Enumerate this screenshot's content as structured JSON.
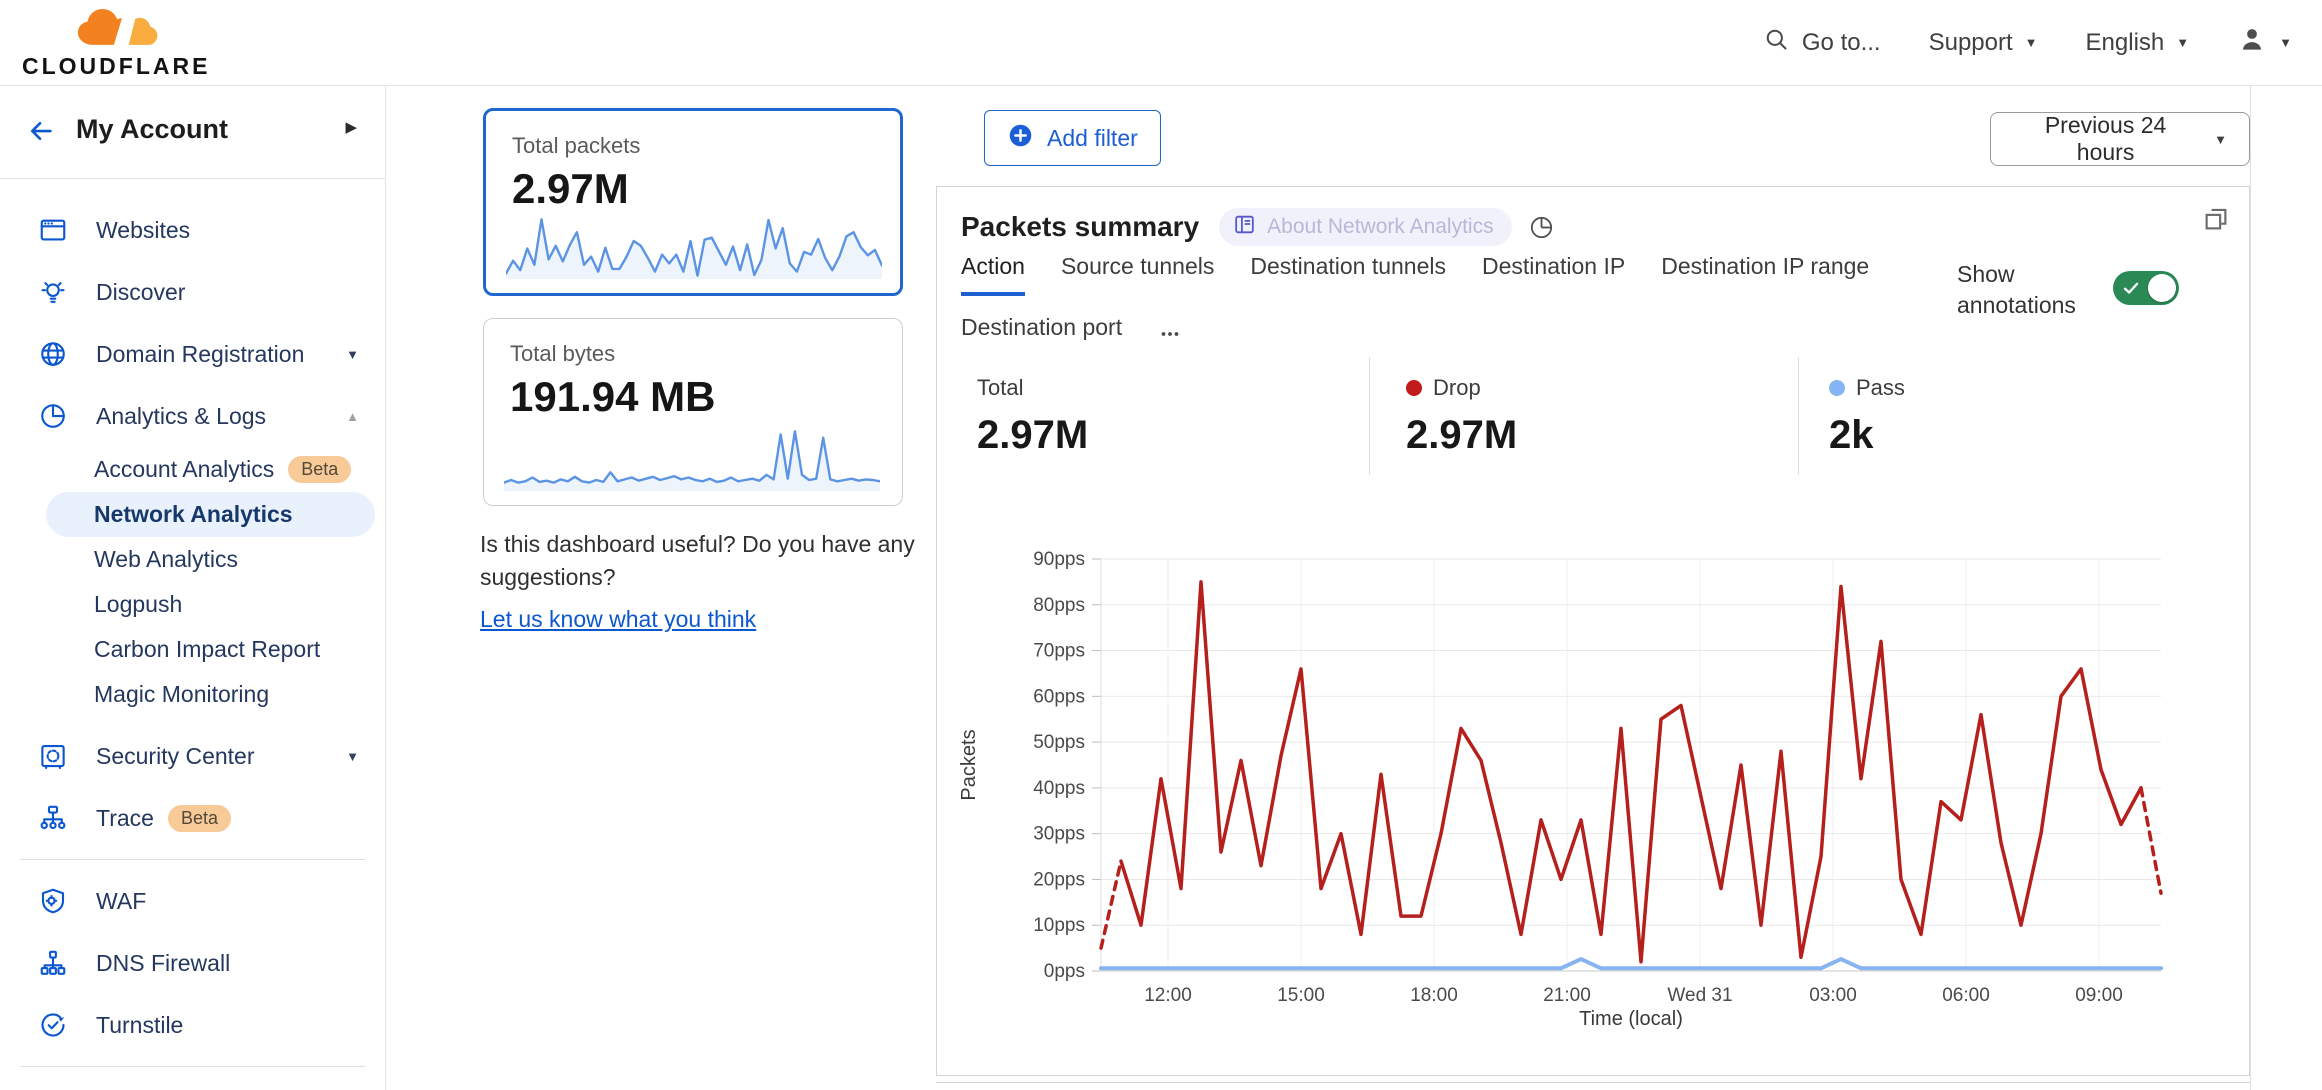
{
  "header": {
    "logo": "CLOUDFLARE",
    "goto": "Go to...",
    "support": "Support",
    "language": "English"
  },
  "sidebar": {
    "account_label": "My Account",
    "items": [
      {
        "label": "Websites",
        "icon": "browser-icon"
      },
      {
        "label": "Discover",
        "icon": "lightbulb-icon"
      },
      {
        "label": "Domain Registration",
        "icon": "globe-icon",
        "caret": "down"
      },
      {
        "label": "Analytics & Logs",
        "icon": "pie-icon",
        "caret": "up",
        "children": [
          {
            "label": "Account Analytics",
            "badge": "Beta"
          },
          {
            "label": "Network Analytics",
            "selected": true
          },
          {
            "label": "Web Analytics"
          },
          {
            "label": "Logpush"
          },
          {
            "label": "Carbon Impact Report"
          },
          {
            "label": "Magic Monitoring"
          }
        ]
      },
      {
        "label": "Security Center",
        "icon": "safe-icon",
        "caret": "down",
        "gap": true
      },
      {
        "label": "Trace",
        "icon": "tree-icon",
        "badge": "Beta"
      },
      {
        "divider": true
      },
      {
        "label": "WAF",
        "icon": "shield-gear-icon"
      },
      {
        "label": "DNS Firewall",
        "icon": "hierarchy-icon"
      },
      {
        "label": "Turnstile",
        "icon": "clock-check-icon"
      },
      {
        "divider": true
      },
      {
        "label": "",
        "icon": "burst-icon",
        "partial": true
      }
    ]
  },
  "overview": {
    "cards": [
      {
        "label": "Total packets",
        "value": "2.97M",
        "selected": true
      },
      {
        "label": "Total bytes",
        "value": "191.94 MB",
        "selected": false
      }
    ],
    "feedback_text": "Is this dashboard useful? Do you have any suggestions?",
    "feedback_link": "Let us know what you think"
  },
  "toolbar": {
    "add_filter": "Add filter",
    "time_range": "Previous 24 hours"
  },
  "panel": {
    "title": "Packets summary",
    "about_badge": "About Network Analytics",
    "tabs": [
      {
        "label": "Action",
        "active": true
      },
      {
        "label": "Source tunnels",
        "active": false
      },
      {
        "label": "Destination tunnels",
        "active": false
      },
      {
        "label": "Destination IP",
        "active": false
      },
      {
        "label": "Destination IP range",
        "active": false
      },
      {
        "label": "Destination port",
        "active": false
      }
    ],
    "show_annotations": "Show annotations",
    "annotations_on": true,
    "stats": [
      {
        "label": "Total",
        "value": "2.97M",
        "dot": ""
      },
      {
        "label": "Drop",
        "value": "2.97M",
        "dot": "#c11b1b"
      },
      {
        "label": "Pass",
        "value": "2k",
        "dot": "#85b4f4"
      }
    ]
  },
  "colors": {
    "accent_blue": "#0b57d0",
    "drop_red": "#b5201c",
    "pass_blue": "#87b3f1",
    "toggle_green": "#2b8956",
    "selected_card_border": "#2166cf",
    "sparkline_blue": "#5b94e4"
  },
  "chart_data": [
    {
      "id": "packets-summary",
      "type": "line",
      "title": "Packets summary",
      "xlabel": "Time (local)",
      "ylabel": "Packets",
      "ylim": [
        0,
        90
      ],
      "yticks": [
        "0pps",
        "10pps",
        "20pps",
        "30pps",
        "40pps",
        "50pps",
        "60pps",
        "70pps",
        "80pps",
        "90pps"
      ],
      "xticks": [
        "12:00",
        "15:00",
        "18:00",
        "21:00",
        "Wed 31",
        "03:00",
        "06:00",
        "09:00"
      ],
      "x_interval": "30min",
      "grid": true,
      "legend_position": "none",
      "series": [
        {
          "name": "Drop",
          "color": "#b5201c",
          "dashed_start": true,
          "dashed_end": true,
          "values": [
            5,
            24,
            10,
            42,
            18,
            85,
            26,
            46,
            23,
            47,
            66,
            18,
            30,
            8,
            43,
            12,
            12,
            30,
            53,
            46,
            28,
            8,
            33,
            20,
            33,
            8,
            53,
            2,
            55,
            58,
            38,
            18,
            45,
            10,
            48,
            3,
            25,
            84,
            42,
            72,
            20,
            8,
            37,
            33,
            56,
            28,
            10,
            30,
            60,
            66,
            44,
            32,
            40,
            17
          ]
        },
        {
          "name": "Pass",
          "color": "#87b3f1",
          "values": [
            0.6,
            0.6,
            0.6,
            0.6,
            0.6,
            0.6,
            0.6,
            0.6,
            0.6,
            0.6,
            0.6,
            0.6,
            0.6,
            0.6,
            0.6,
            0.6,
            0.6,
            0.6,
            0.6,
            0.6,
            0.6,
            0.6,
            0.6,
            0.6,
            2.6,
            0.6,
            0.6,
            0.6,
            0.6,
            0.6,
            0.6,
            0.6,
            0.6,
            0.6,
            0.6,
            0.6,
            0.6,
            2.6,
            0.6,
            0.6,
            0.6,
            0.6,
            0.6,
            0.6,
            0.6,
            0.6,
            0.6,
            0.6,
            0.6,
            0.6,
            0.6,
            0.6,
            0.6,
            0.6
          ]
        }
      ]
    },
    {
      "id": "total-packets-sparkline",
      "type": "line",
      "series": [
        {
          "name": "Total packets",
          "color": "#5b94e4",
          "values": [
            5,
            24,
            10,
            42,
            18,
            85,
            26,
            46,
            23,
            47,
            66,
            18,
            30,
            8,
            43,
            12,
            12,
            30,
            53,
            46,
            28,
            8,
            33,
            20,
            33,
            8,
            53,
            2,
            55,
            58,
            38,
            18,
            45,
            10,
            48,
            3,
            25,
            84,
            42,
            72,
            20,
            8,
            37,
            33,
            56,
            28,
            10,
            30,
            60,
            66,
            44,
            32,
            40,
            17
          ]
        }
      ]
    },
    {
      "id": "total-bytes-sparkline",
      "type": "line",
      "series": [
        {
          "name": "Total bytes",
          "color": "#5b94e4",
          "values": [
            1,
            1.4,
            1,
            1.2,
            1.8,
            1.1,
            1.3,
            1,
            1.5,
            1.2,
            1.9,
            1.2,
            1,
            1.4,
            1.1,
            2.6,
            1.2,
            1.5,
            1.8,
            1.3,
            1.6,
            1.9,
            1.4,
            1.7,
            2,
            1.5,
            1.8,
            1.4,
            1.2,
            1.6,
            1.1,
            1.3,
            1.8,
            1.2,
            1.4,
            1.6,
            1.3,
            2.2,
            1.5,
            8.5,
            1.6,
            9,
            2.2,
            1.4,
            1.6,
            8,
            1.5,
            1.2,
            1.4,
            1.6,
            1.3,
            1.5,
            1.4,
            1.2
          ]
        }
      ]
    }
  ]
}
